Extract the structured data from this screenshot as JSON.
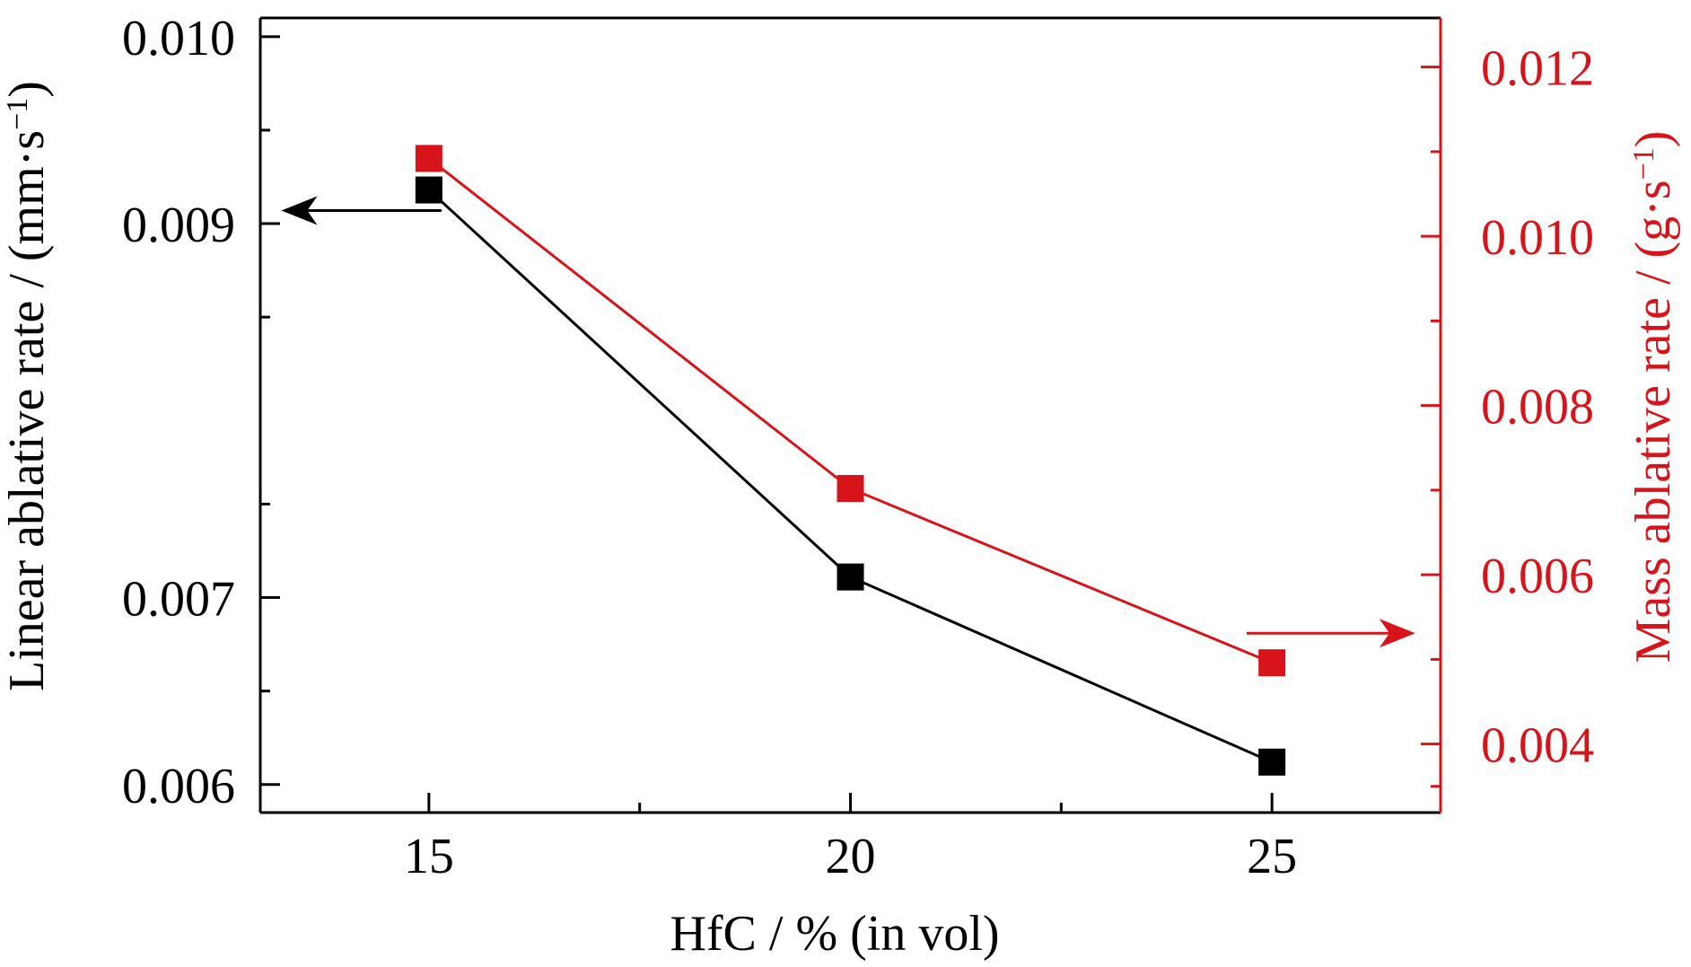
{
  "chart_data": {
    "type": "line",
    "xlabel": "HfC / % (in vol)",
    "ylabel_left": {
      "base": "Linear ablative rate / (mm·s",
      "sup": "−1",
      "close": ")"
    },
    "ylabel_right": {
      "base": "Mass ablative rate / (g·s",
      "sup": "−1",
      "close": ")"
    },
    "x_ticks": [
      15,
      20,
      25
    ],
    "x_tick_labels": [
      "15",
      "20",
      "25"
    ],
    "xlim": [
      13,
      27
    ],
    "y_left_ticks": [
      0.006,
      0.007,
      0.009,
      0.01
    ],
    "y_left_tick_labels": [
      "0.006",
      "0.007",
      "0.009",
      "0.010"
    ],
    "y_left_minor_ticks": [
      0.0065,
      0.0075,
      0.0085,
      0.0095
    ],
    "y_left_lim": [
      0.00585,
      0.0101
    ],
    "y_right_ticks": [
      0.004,
      0.006,
      0.008,
      0.01,
      0.012
    ],
    "y_right_tick_labels": [
      "0.004",
      "0.006",
      "0.008",
      "0.010",
      "0.012"
    ],
    "y_right_minor_ticks": [
      0.0035,
      0.005,
      0.007,
      0.009,
      0.011
    ],
    "y_right_lim": [
      0.00319,
      0.01258
    ],
    "series": [
      {
        "axis": "left",
        "color": "#000000",
        "x": [
          15,
          20,
          25
        ],
        "values": [
          0.00918,
          0.00711,
          0.00612
        ]
      },
      {
        "axis": "right",
        "color": "#d7141a",
        "x": [
          15,
          20,
          25
        ],
        "values": [
          0.01092,
          0.00702,
          0.00496
        ]
      }
    ],
    "annotations": [
      {
        "type": "arrow",
        "axis": "left",
        "color": "#000000",
        "direction": "left",
        "x_from": 15.15,
        "x_to": 13.25,
        "y": 0.00907
      },
      {
        "type": "arrow",
        "axis": "right",
        "color": "#d7141a",
        "direction": "right",
        "x_from": 24.7,
        "x_to": 26.7,
        "y": 0.00531
      }
    ],
    "grid": false,
    "colors": {
      "left_axis": "#000000",
      "right_axis": "#d7141a"
    }
  }
}
